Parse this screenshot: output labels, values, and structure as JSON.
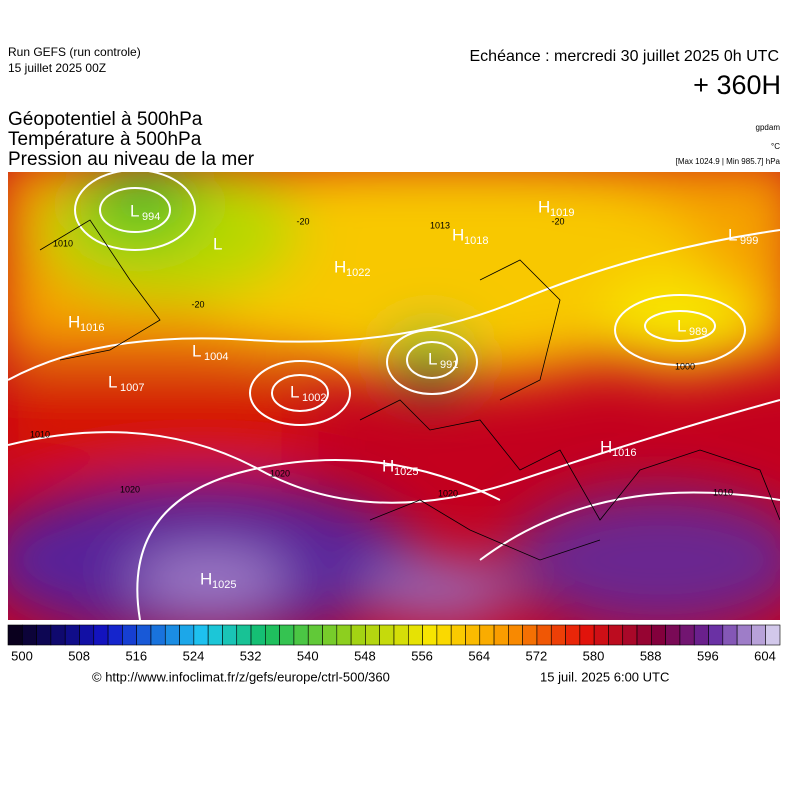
{
  "header": {
    "run": "Run GEFS (run controle)",
    "date": "15 juillet 2025 00Z",
    "valid": "Echéance : mercredi 30 juillet 2025 0h UTC",
    "lead": "+ 360H",
    "fields": [
      "Géopotentiel à 500hPa",
      "Température à 500hPa",
      "Pression au niveau de la mer"
    ],
    "unit_gp": "gpdam",
    "unit_t": "°C",
    "range": "[Max 1024.9 | Min 985.7] hPa"
  },
  "map": {
    "centers": [
      {
        "letter": "L",
        "value": 994
      },
      {
        "letter": "L"
      },
      {
        "letter": "H",
        "value": 1016
      },
      {
        "letter": "L",
        "value": 1004
      },
      {
        "letter": "L",
        "value": 1007
      },
      {
        "letter": "L",
        "value": 1002
      },
      {
        "letter": "H",
        "value": 1022
      },
      {
        "letter": "H",
        "value": 1018
      },
      {
        "letter": "H",
        "value": 1019
      },
      {
        "letter": "L",
        "value": 999
      },
      {
        "letter": "L",
        "value": 989
      },
      {
        "letter": "L",
        "value": 991
      },
      {
        "letter": "H",
        "value": 1025
      },
      {
        "letter": "H",
        "value": 1016
      },
      {
        "letter": "H",
        "value": 1025
      }
    ],
    "contour_labels": [
      1010,
      1010,
      1020,
      1020,
      1020,
      1010,
      1000,
      1013,
      -20,
      -20,
      -20
    ]
  },
  "colorbar": {
    "ticks": [
      500,
      508,
      516,
      524,
      532,
      540,
      548,
      556,
      564,
      572,
      580,
      588,
      596,
      604
    ]
  },
  "footer": {
    "source": "© http://www.infoclimat.fr/z/gefs/europe/ctrl-500/360",
    "generated": "15 juil. 2025  6:00 UTC"
  }
}
